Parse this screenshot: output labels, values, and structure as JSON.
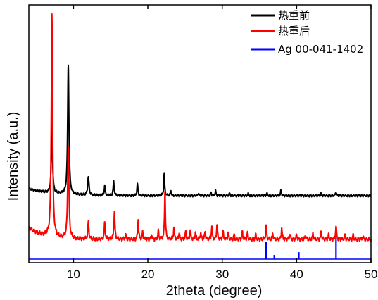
{
  "chart_data": {
    "type": "line",
    "title": "",
    "xlabel": "2theta (degree)",
    "ylabel": "Intensity (a.u.)",
    "xlim": [
      4,
      50
    ],
    "ylim": [
      0,
      1
    ],
    "x_ticks": [
      10,
      20,
      30,
      40,
      50
    ],
    "y_ticks_visible": false,
    "grid": false,
    "legend_position": "top-right",
    "series": [
      {
        "name": "热重前",
        "color": "#000000",
        "render": "line",
        "baseline": 0.273,
        "noise": 0.003,
        "start_offset": 0.03,
        "start_decay": 3.0,
        "peaks": [
          [
            7.1,
            0.32,
            0.09
          ],
          [
            9.3,
            0.56,
            0.1
          ],
          [
            12.0,
            0.08,
            0.1
          ],
          [
            14.2,
            0.04,
            0.08
          ],
          [
            15.4,
            0.06,
            0.08
          ],
          [
            18.6,
            0.05,
            0.08
          ],
          [
            22.2,
            0.095,
            0.07
          ],
          [
            23.1,
            0.02,
            0.07
          ],
          [
            26.8,
            0.012,
            0.07
          ],
          [
            28.5,
            0.012,
            0.07
          ],
          [
            29.1,
            0.02,
            0.07
          ],
          [
            31.0,
            0.01,
            0.07
          ],
          [
            33.5,
            0.008,
            0.07
          ],
          [
            36.0,
            0.01,
            0.07
          ],
          [
            37.9,
            0.022,
            0.07
          ],
          [
            43.3,
            0.008,
            0.07
          ],
          [
            45.3,
            0.018,
            0.07
          ]
        ]
      },
      {
        "name": "热重后",
        "color": "#ff0000",
        "render": "line",
        "baseline": 0.085,
        "noise": 0.005,
        "start_offset": 0.05,
        "start_decay": 2.0,
        "peaks": [
          [
            7.1,
            0.96,
            0.1
          ],
          [
            9.3,
            0.4,
            0.1
          ],
          [
            12.0,
            0.075,
            0.08
          ],
          [
            14.2,
            0.07,
            0.08
          ],
          [
            15.5,
            0.12,
            0.08
          ],
          [
            17.0,
            0.02,
            0.07
          ],
          [
            18.7,
            0.085,
            0.07
          ],
          [
            19.3,
            0.03,
            0.07
          ],
          [
            20.5,
            0.02,
            0.07
          ],
          [
            21.4,
            0.035,
            0.07
          ],
          [
            22.3,
            0.21,
            0.07
          ],
          [
            23.5,
            0.05,
            0.07
          ],
          [
            24.2,
            0.03,
            0.07
          ],
          [
            25.1,
            0.035,
            0.07
          ],
          [
            25.7,
            0.04,
            0.07
          ],
          [
            26.4,
            0.03,
            0.07
          ],
          [
            27.1,
            0.03,
            0.07
          ],
          [
            27.7,
            0.035,
            0.07
          ],
          [
            28.6,
            0.055,
            0.07
          ],
          [
            29.3,
            0.065,
            0.07
          ],
          [
            30.1,
            0.035,
            0.07
          ],
          [
            30.8,
            0.03,
            0.07
          ],
          [
            31.6,
            0.02,
            0.07
          ],
          [
            32.7,
            0.03,
            0.07
          ],
          [
            33.4,
            0.03,
            0.07
          ],
          [
            34.5,
            0.02,
            0.07
          ],
          [
            35.9,
            0.055,
            0.07
          ],
          [
            36.8,
            0.025,
            0.07
          ],
          [
            38.0,
            0.05,
            0.07
          ],
          [
            39.1,
            0.025,
            0.07
          ],
          [
            40.0,
            0.02,
            0.07
          ],
          [
            41.2,
            0.02,
            0.07
          ],
          [
            42.2,
            0.025,
            0.07
          ],
          [
            43.3,
            0.035,
            0.07
          ],
          [
            44.3,
            0.02,
            0.07
          ],
          [
            45.3,
            0.06,
            0.07
          ],
          [
            46.5,
            0.02,
            0.07
          ],
          [
            47.6,
            0.02,
            0.07
          ],
          [
            48.9,
            0.015,
            0.07
          ]
        ]
      },
      {
        "name": "Ag 00-041-1402",
        "color": "#0000ff",
        "render": "stick",
        "baseline": 0.0,
        "peaks": [
          [
            35.9,
            0.075
          ],
          [
            37.0,
            0.018
          ],
          [
            40.3,
            0.03
          ],
          [
            45.3,
            0.09
          ]
        ]
      }
    ]
  }
}
